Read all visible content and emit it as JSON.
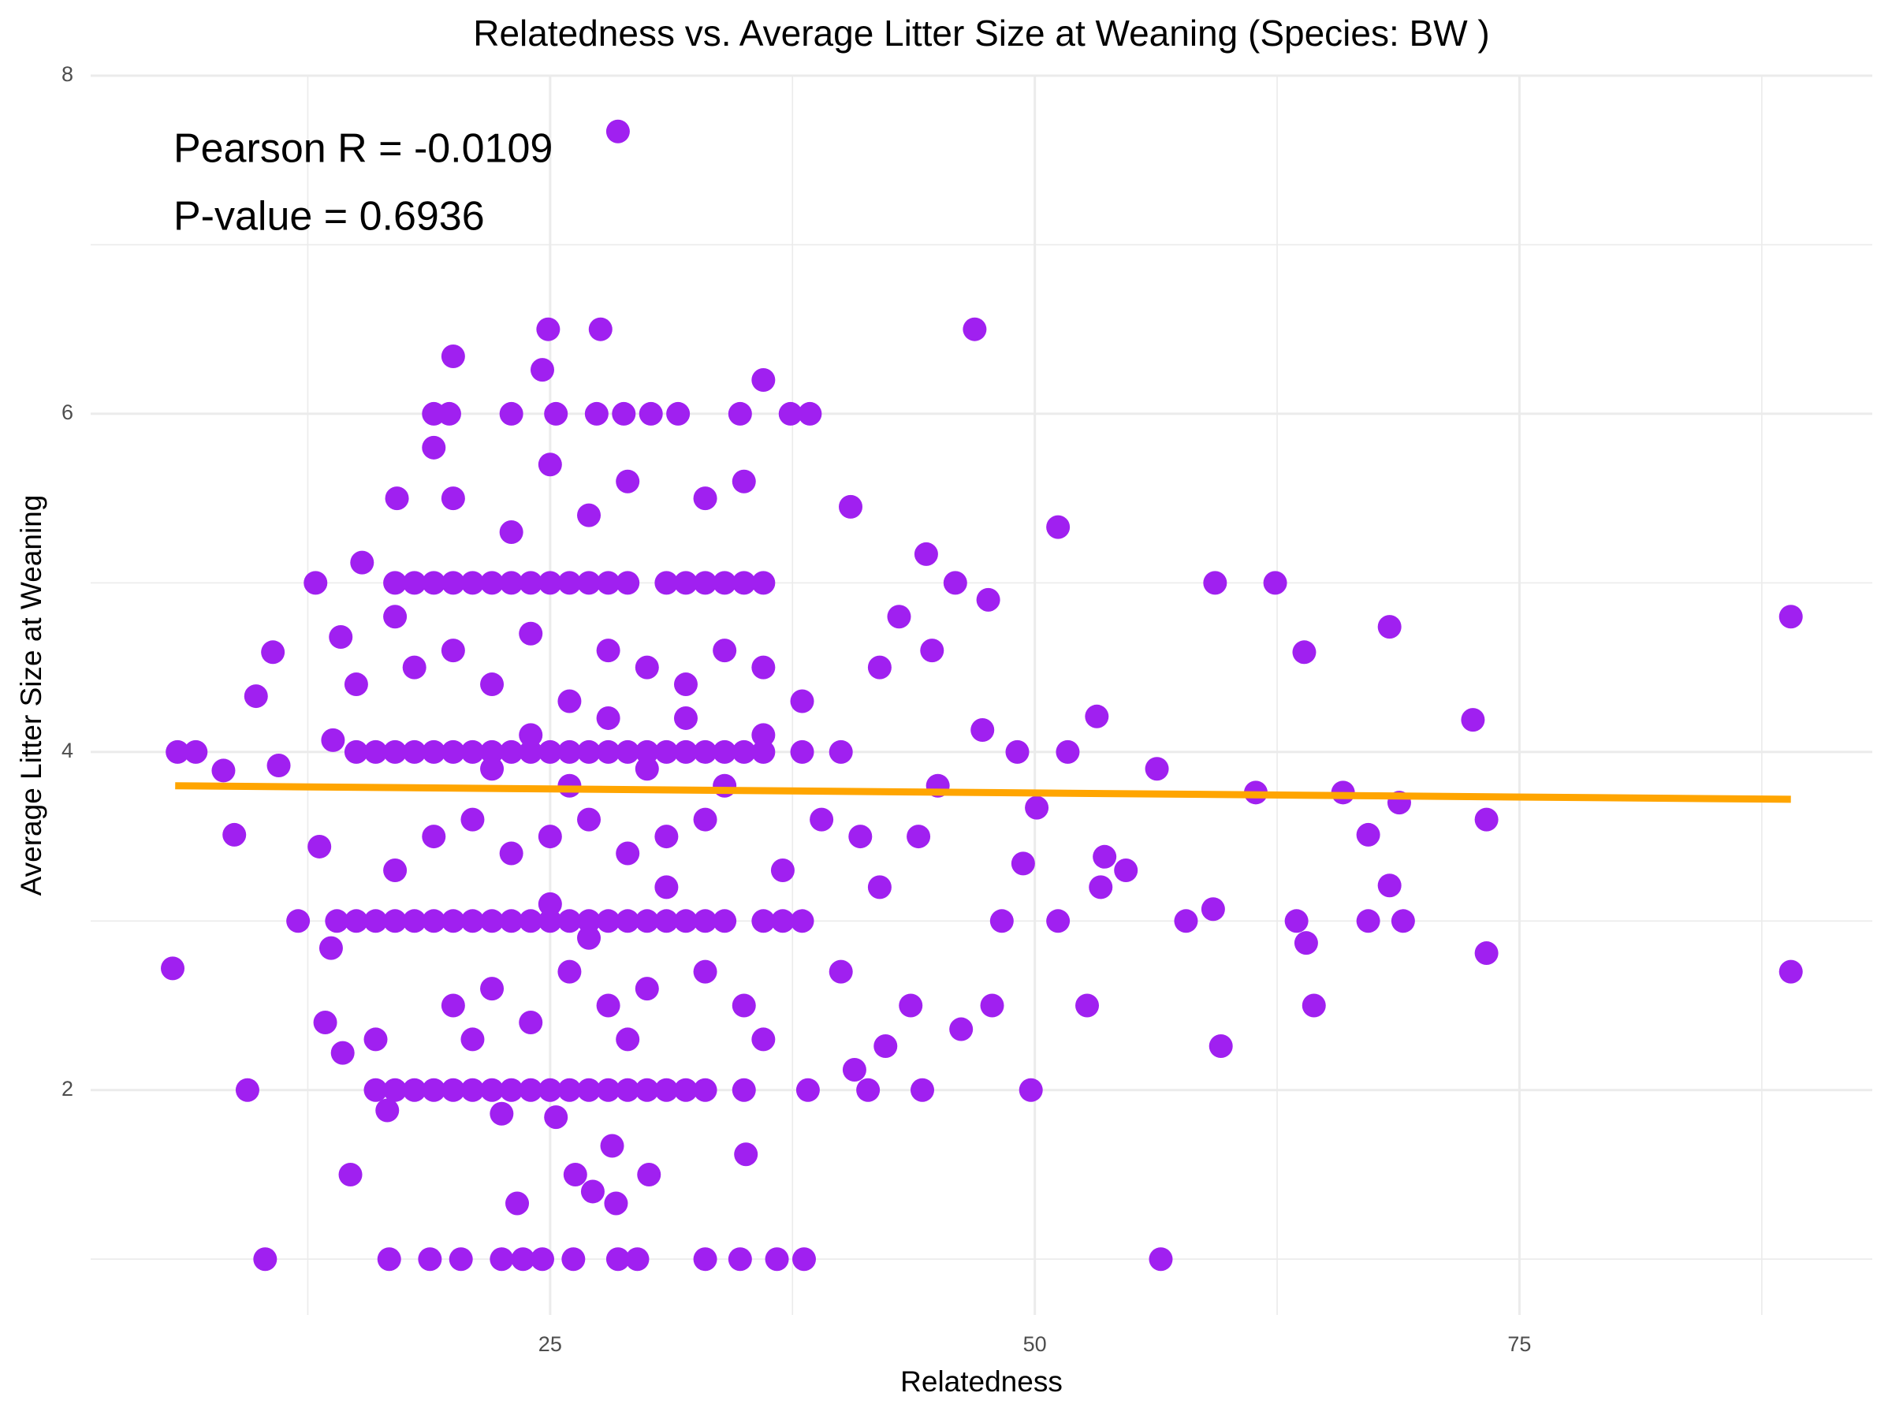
{
  "chart_data": {
    "type": "scatter",
    "title": "Relatedness vs. Average Litter Size at Weaning (Species: BW )",
    "x_label": "Relatedness",
    "y_label": "Average Litter Size at Weaning",
    "annotations": [
      "Pearson R = -0.0109",
      "P-value = 0.6936"
    ],
    "xlim": [
      1.3,
      93.2
    ],
    "ylim": [
      0.67,
      8.0
    ],
    "xticks": [
      25,
      50,
      75
    ],
    "yticks": [
      2,
      4,
      6,
      8
    ],
    "x_minor_ticks": [
      12.5,
      37.5,
      62.5,
      87.5
    ],
    "y_minor_ticks": [
      1,
      3,
      5,
      7
    ],
    "grid": true,
    "points": {
      "color": "#a020f0",
      "x": [
        5.53,
        5.78,
        6.72,
        8.15,
        8.71,
        9.39,
        9.83,
        10.3,
        10.7,
        11.0,
        12.9,
        14.7,
        16.7,
        18.8,
        20.4,
        20.0,
        24.9,
        27.6,
        28.5,
        24.6,
        36.0,
        38.4,
        40.5,
        46.9,
        51.2,
        59.3,
        62.4,
        63.9,
        68.3,
        72.6,
        89.0,
        89.0,
        73.3,
        73.3,
        69.0,
        67.2,
        67.2,
        68.3,
        64.4,
        64.0,
        63.5,
        61.4,
        65.9,
        68.8,
        59.6,
        59.2,
        57.8,
        56.5,
        56.3,
        54.7,
        53.6,
        53.4,
        53.2,
        52.7,
        51.7,
        50.1,
        49.8,
        49.1,
        49.4,
        51.2,
        48.3,
        47.6,
        47.3,
        47.8,
        46.2,
        45.9,
        44.4,
        44.7,
        44.2,
        43.6,
        42.3,
        41.4,
        40.7,
        38.3,
        38.1,
        36.7,
        34.8,
        33.0,
        29.5,
        28.5,
        26.2,
        24.6,
        23.6,
        22.5,
        23.3,
        26.3,
        27.2,
        28.4,
        28.2,
        30.1,
        35.1,
        25.3,
        22.5,
        16.6,
        14.3,
        13.4,
        13.7,
        12.0,
        13.1,
        13.8,
        14.2,
        15.3,
        17.1,
        19.0,
        19.8,
        23.0,
        25.3,
        27.4,
        28.8,
        30.2,
        31.6,
        34.8,
        37.4,
        17,
        18,
        19,
        20,
        21,
        22,
        23,
        24,
        25,
        26,
        27,
        28,
        29,
        31,
        32,
        33,
        34,
        35,
        36,
        15,
        16,
        17,
        18,
        19,
        20,
        21,
        22,
        23,
        24,
        25,
        26,
        27,
        28,
        29,
        30,
        31,
        32,
        33,
        34,
        35,
        36,
        38,
        40,
        14,
        15,
        16,
        17,
        18,
        19,
        20,
        21,
        22,
        23,
        24,
        25,
        26,
        27,
        28,
        29,
        30,
        31,
        32,
        33,
        34,
        36,
        37,
        38,
        16,
        17,
        18,
        19,
        20,
        21,
        22,
        23,
        24,
        25,
        26,
        27,
        28,
        29,
        30,
        31,
        32,
        33,
        35,
        18,
        20,
        22,
        24,
        26,
        28,
        30,
        32,
        19,
        21,
        23,
        25,
        27,
        29,
        31,
        33,
        20,
        22,
        24,
        26,
        28,
        30,
        20,
        23,
        25,
        27,
        29,
        33,
        35,
        19,
        34,
        36,
        38,
        37,
        39,
        41,
        42,
        43,
        40,
        42,
        44,
        45,
        35,
        36,
        17,
        16,
        15,
        17,
        22,
        26,
        30,
        34,
        24,
        28,
        32,
        36,
        21,
        29,
        33,
        25,
        31,
        27
      ],
      "y": [
        2.72,
        4.0,
        4.0,
        3.89,
        3.51,
        2.0,
        4.33,
        1.0,
        4.59,
        3.92,
        5.0,
        1.5,
        1.0,
        1.0,
        1.0,
        6.34,
        6.5,
        6.5,
        7.67,
        6.26,
        6.2,
        6.0,
        5.45,
        6.5,
        5.33,
        5.0,
        5.0,
        4.59,
        4.74,
        4.19,
        4.8,
        2.7,
        3.6,
        2.81,
        3.0,
        3.0,
        3.51,
        3.21,
        2.5,
        2.87,
        3.0,
        3.76,
        3.76,
        3.7,
        2.26,
        3.07,
        3.0,
        1.0,
        3.9,
        3.3,
        3.38,
        3.2,
        4.21,
        2.5,
        4.0,
        3.67,
        2.0,
        4.0,
        3.34,
        3.0,
        3.0,
        4.9,
        4.13,
        2.5,
        2.36,
        5.0,
        5.17,
        4.6,
        2.0,
        2.5,
        2.26,
        2.0,
        2.12,
        2.0,
        1.0,
        1.0,
        1.0,
        1.0,
        1.0,
        1.0,
        1.0,
        1.0,
        1.0,
        1.0,
        1.33,
        1.5,
        1.4,
        1.33,
        1.67,
        1.5,
        1.62,
        1.84,
        1.86,
        1.88,
        2.22,
        2.4,
        2.84,
        3.0,
        3.44,
        4.07,
        4.68,
        5.12,
        5.5,
        6.0,
        6.0,
        6.0,
        6.0,
        6.0,
        6.0,
        6.0,
        6.0,
        6.0,
        6.0,
        5,
        5,
        5,
        5,
        5,
        5,
        5,
        5,
        5,
        5,
        5,
        5,
        5,
        5,
        5,
        5,
        5,
        5,
        5,
        4,
        4,
        4,
        4,
        4,
        4,
        4,
        4,
        4,
        4,
        4,
        4,
        4,
        4,
        4,
        4,
        4,
        4,
        4,
        4,
        4,
        4,
        4,
        4,
        3,
        3,
        3,
        3,
        3,
        3,
        3,
        3,
        3,
        3,
        3,
        3,
        3,
        3,
        3,
        3,
        3,
        3,
        3,
        3,
        3,
        3,
        3,
        3,
        2,
        2,
        2,
        2,
        2,
        2,
        2,
        2,
        2,
        2,
        2,
        2,
        2,
        2,
        2,
        2,
        2,
        2,
        2,
        4.5,
        4.6,
        4.4,
        4.7,
        4.3,
        4.6,
        4.5,
        4.4,
        3.5,
        3.6,
        3.4,
        3.5,
        3.6,
        3.4,
        3.5,
        3.6,
        2.5,
        2.6,
        2.4,
        2.7,
        2.5,
        2.6,
        5.5,
        5.3,
        5.7,
        5.4,
        5.6,
        5.5,
        5.6,
        5.8,
        4.6,
        4.5,
        4.3,
        3.3,
        3.6,
        3.5,
        4.5,
        4.8,
        2.7,
        3.2,
        3.5,
        3.8,
        2.5,
        2.3,
        3.3,
        2.3,
        4.4,
        4.8,
        3.9,
        3.8,
        3.9,
        3.8,
        4.1,
        4.2,
        4.2,
        4.1,
        2.3,
        2.3,
        2.7,
        3.1,
        3.2,
        2.9
      ]
    },
    "trend_line": {
      "color": "#ffa500",
      "x": [
        5.66,
        89.0
      ],
      "y": [
        3.8,
        3.72
      ]
    }
  }
}
